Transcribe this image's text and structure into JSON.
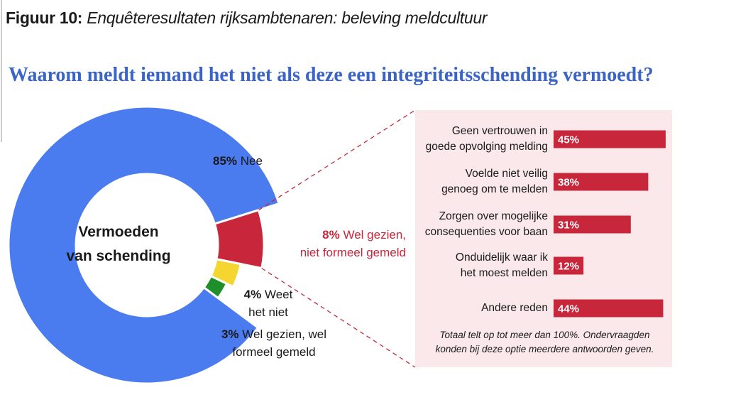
{
  "figure_label": "Figuur 10:",
  "figure_title": "Enquêteresultaten rijksambtenaren: beleving meldcultuur",
  "chart_data": [
    {
      "type": "donut",
      "title": "Waarom meldt iemand het niet als deze een integriteitsschending vermoedt?",
      "center_label": "Vermoeden\nvan schending",
      "categories": [
        "Nee",
        "Wel gezien,\nniet formeel gemeld",
        "Weet\nhet niet",
        "Wel gezien, wel\nformeel gemeld"
      ],
      "values": [
        85,
        8,
        4,
        3
      ],
      "value_labels": [
        "85%",
        "8%",
        "4%",
        "3%"
      ],
      "colors": [
        "#4a7bef",
        "#c8273b",
        "#f5d630",
        "#1f8f2a"
      ]
    },
    {
      "type": "bar",
      "orientation": "horizontal",
      "categories": [
        "Geen vertrouwen in\ngoede opvolging melding",
        "Voelde niet veilig\ngenoeg om te melden",
        "Zorgen over mogelijke\nconsequenties voor baan",
        "Onduidelijk waar ik\nhet moest melden",
        "Andere reden"
      ],
      "values": [
        45,
        38,
        31,
        12,
        44
      ],
      "value_labels": [
        "45%",
        "38%",
        "31%",
        "12%",
        "44%"
      ],
      "color": "#c8273b",
      "note": "Totaal telt op tot meer dan 100%. Ondervraagden\nkonden bij deze optie meerdere antwoorden geven."
    }
  ]
}
